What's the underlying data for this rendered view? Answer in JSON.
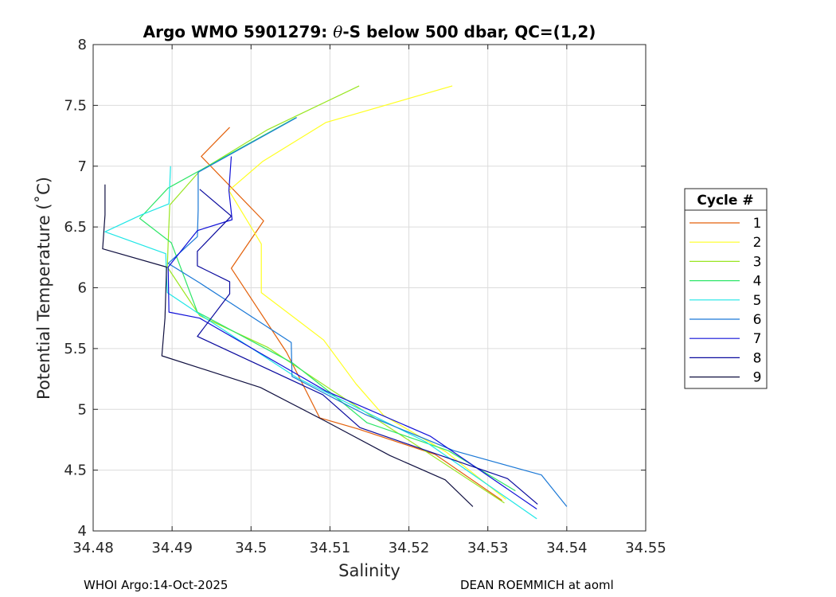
{
  "chart_data": {
    "type": "line",
    "title_parts": [
      "Argo WMO 5901279: ",
      "θ",
      "-S below 500 dbar,  QC=(1,2)"
    ],
    "xlabel": "Salinity",
    "ylabel": "Potential Temperature (˚C)",
    "xlim": [
      34.48,
      34.55
    ],
    "ylim": [
      4,
      8
    ],
    "xticks": [
      "34.48",
      "34.49",
      "34.5",
      "34.51",
      "34.52",
      "34.53",
      "34.54",
      "34.55"
    ],
    "yticks": [
      "4",
      "4.5",
      "5",
      "5.5",
      "6",
      "6.5",
      "7",
      "7.5",
      "8"
    ],
    "grid": true,
    "legend": {
      "title": "Cycle #",
      "position": "outside-right"
    },
    "series": [
      {
        "name": "1",
        "color": "#e3600a",
        "points": [
          [
            34.4973,
            7.32
          ],
          [
            34.4937,
            7.08
          ],
          [
            34.5016,
            6.55
          ],
          [
            34.4975,
            6.16
          ],
          [
            34.5045,
            5.47
          ],
          [
            34.5087,
            4.93
          ],
          [
            34.5135,
            4.84
          ],
          [
            34.5233,
            4.63
          ],
          [
            34.5318,
            4.25
          ]
        ]
      },
      {
        "name": "2",
        "color": "#ffff20",
        "points": [
          [
            34.5255,
            7.66
          ],
          [
            34.5095,
            7.36
          ],
          [
            34.5015,
            7.04
          ],
          [
            34.4972,
            6.8
          ],
          [
            34.5013,
            6.36
          ],
          [
            34.5013,
            5.96
          ],
          [
            34.5092,
            5.57
          ],
          [
            34.5133,
            5.21
          ],
          [
            34.5168,
            4.95
          ],
          [
            34.5247,
            4.65
          ],
          [
            34.5323,
            4.26
          ]
        ]
      },
      {
        "name": "3",
        "color": "#99e621",
        "points": [
          [
            34.5137,
            7.66
          ],
          [
            34.5021,
            7.3
          ],
          [
            34.4935,
            6.96
          ],
          [
            34.4897,
            6.68
          ],
          [
            34.4895,
            6.37
          ],
          [
            34.4894,
            6.17
          ],
          [
            34.4935,
            5.77
          ],
          [
            34.5021,
            5.51
          ],
          [
            34.5104,
            5.15
          ],
          [
            34.5187,
            4.8
          ],
          [
            34.5321,
            4.23
          ]
        ]
      },
      {
        "name": "4",
        "color": "#2ee668",
        "points": [
          [
            34.5057,
            7.4
          ],
          [
            34.4895,
            6.82
          ],
          [
            34.4859,
            6.57
          ],
          [
            34.4899,
            6.37
          ],
          [
            34.4932,
            5.8
          ],
          [
            34.5053,
            5.38
          ],
          [
            34.5102,
            5.13
          ],
          [
            34.5147,
            4.89
          ],
          [
            34.525,
            4.66
          ],
          [
            34.5335,
            4.33
          ]
        ]
      },
      {
        "name": "5",
        "color": "#1fe6e6",
        "points": [
          [
            34.4898,
            7.0
          ],
          [
            34.4896,
            6.69
          ],
          [
            34.4861,
            6.6
          ],
          [
            34.4815,
            6.46
          ],
          [
            34.4892,
            6.28
          ],
          [
            34.4893,
            6.08
          ],
          [
            34.4894,
            5.96
          ],
          [
            34.494,
            5.76
          ],
          [
            34.5058,
            5.26
          ],
          [
            34.5222,
            4.73
          ],
          [
            34.5362,
            4.1
          ]
        ]
      },
      {
        "name": "6",
        "color": "#1a78d6",
        "points": [
          [
            34.5058,
            7.4
          ],
          [
            34.4933,
            6.95
          ],
          [
            34.4933,
            6.64
          ],
          [
            34.4932,
            6.42
          ],
          [
            34.4895,
            6.2
          ],
          [
            34.4935,
            6.04
          ],
          [
            34.5051,
            5.55
          ],
          [
            34.5052,
            5.27
          ],
          [
            34.5144,
            4.96
          ],
          [
            34.5257,
            4.66
          ],
          [
            34.5368,
            4.46
          ],
          [
            34.54,
            4.2
          ]
        ]
      },
      {
        "name": "7",
        "color": "#1010d8",
        "points": [
          [
            34.4975,
            7.08
          ],
          [
            34.4972,
            6.8
          ],
          [
            34.4976,
            6.56
          ],
          [
            34.4932,
            6.47
          ],
          [
            34.4895,
            6.17
          ],
          [
            34.4896,
            5.8
          ],
          [
            34.4935,
            5.75
          ],
          [
            34.5095,
            5.15
          ],
          [
            34.5227,
            4.78
          ],
          [
            34.5362,
            4.18
          ]
        ]
      },
      {
        "name": "8",
        "color": "#0a0a9e",
        "points": [
          [
            34.4935,
            6.81
          ],
          [
            34.4975,
            6.59
          ],
          [
            34.4932,
            6.3
          ],
          [
            34.4932,
            6.18
          ],
          [
            34.4973,
            6.05
          ],
          [
            34.4973,
            5.95
          ],
          [
            34.4932,
            5.6
          ],
          [
            34.5091,
            5.12
          ],
          [
            34.5138,
            4.85
          ],
          [
            34.5325,
            4.43
          ],
          [
            34.5363,
            4.22
          ]
        ]
      },
      {
        "name": "9",
        "color": "#101040",
        "points": [
          [
            34.4815,
            6.85
          ],
          [
            34.4815,
            6.6
          ],
          [
            34.4812,
            6.32
          ],
          [
            34.4893,
            6.17
          ],
          [
            34.4891,
            5.75
          ],
          [
            34.4887,
            5.44
          ],
          [
            34.5012,
            5.18
          ],
          [
            34.5095,
            4.9
          ],
          [
            34.5176,
            4.62
          ],
          [
            34.5246,
            4.42
          ],
          [
            34.5281,
            4.2
          ]
        ]
      }
    ]
  },
  "footer": {
    "left": "WHOI Argo:14-Oct-2025",
    "right": "DEAN ROEMMICH at aoml"
  }
}
